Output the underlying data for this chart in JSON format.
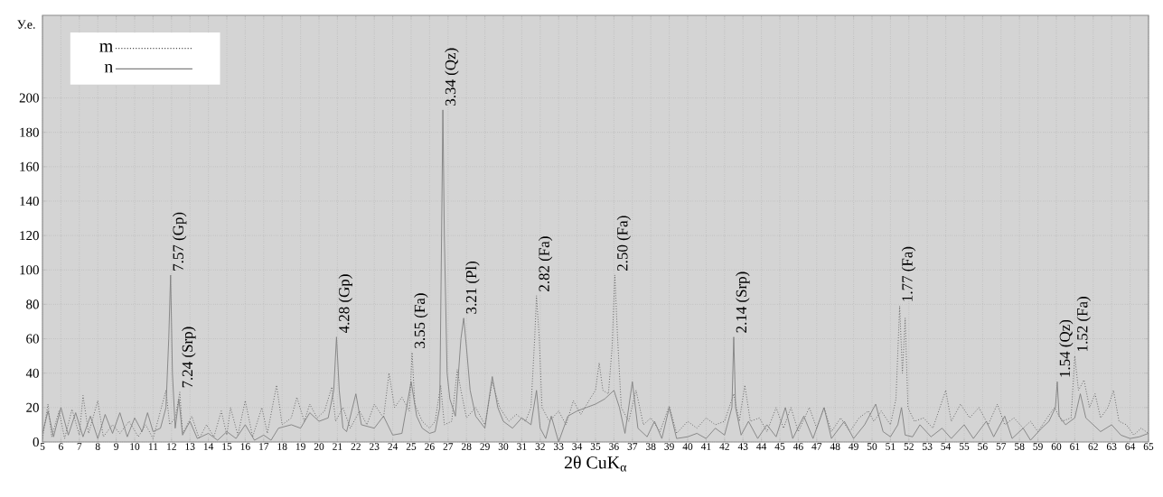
{
  "chart_data": {
    "type": "line",
    "xlabel": "2θ CuK$_{α}$",
    "ylabel": "У.е.",
    "xlim": [
      5,
      65
    ],
    "ylim": [
      0,
      248
    ],
    "xticks": [
      5,
      6,
      7,
      8,
      9,
      10,
      11,
      12,
      13,
      14,
      15,
      16,
      17,
      18,
      19,
      20,
      21,
      22,
      23,
      24,
      25,
      26,
      27,
      28,
      29,
      30,
      31,
      32,
      33,
      34,
      35,
      36,
      37,
      38,
      39,
      40,
      41,
      42,
      43,
      44,
      45,
      46,
      47,
      48,
      49,
      50,
      51,
      52,
      53,
      54,
      55,
      56,
      57,
      58,
      59,
      60,
      61,
      62,
      63,
      64,
      65
    ],
    "yticks": [
      0,
      20,
      40,
      60,
      80,
      100,
      120,
      140,
      160,
      180,
      200
    ],
    "grid": true,
    "legend": "top left",
    "series": [
      {
        "name": "m",
        "color": "#505050",
        "line_style": "dotted",
        "x": [
          5.0,
          5.3,
          5.5,
          5.9,
          6.2,
          6.6,
          7.0,
          7.2,
          7.5,
          8.0,
          8.3,
          8.8,
          9.2,
          9.7,
          10.2,
          10.6,
          11.0,
          11.4,
          11.7,
          11.9,
          12.2,
          12.45,
          12.6,
          13.1,
          13.5,
          13.9,
          14.3,
          14.7,
          15.0,
          15.2,
          15.6,
          16.0,
          16.4,
          16.9,
          17.2,
          17.7,
          18.0,
          18.5,
          18.8,
          19.2,
          19.5,
          19.9,
          20.3,
          20.7,
          20.9,
          21.3,
          21.7,
          22.2,
          22.6,
          23.0,
          23.5,
          23.8,
          24.1,
          24.5,
          24.9,
          25.05,
          25.2,
          25.6,
          26.0,
          26.3,
          26.6,
          26.8,
          27.2,
          27.5,
          27.7,
          28.0,
          28.5,
          29.0,
          29.4,
          29.8,
          30.3,
          30.7,
          31.2,
          31.5,
          31.7,
          31.8,
          31.95,
          32.1,
          32.5,
          33.0,
          33.4,
          33.8,
          34.2,
          34.7,
          35.0,
          35.2,
          35.4,
          35.7,
          35.9,
          36.05,
          36.2,
          36.4,
          36.8,
          37.2,
          37.6,
          38.0,
          38.5,
          39.0,
          39.4,
          40.0,
          40.5,
          41.0,
          41.5,
          42.0,
          42.5,
          42.8,
          43.1,
          43.4,
          43.9,
          44.3,
          44.8,
          45.2,
          45.6,
          46.0,
          46.6,
          47.0,
          47.4,
          47.8,
          48.3,
          48.8,
          49.3,
          49.8,
          50.1,
          50.5,
          51.0,
          51.3,
          51.5,
          51.65,
          51.8,
          51.95,
          52.3,
          52.8,
          53.3,
          54.0,
          54.3,
          54.8,
          55.3,
          55.8,
          56.3,
          56.8,
          57.2,
          57.7,
          58.2,
          58.6,
          59.0,
          59.5,
          59.9,
          60.3,
          60.8,
          61.0,
          61.2,
          61.5,
          61.8,
          62.1,
          62.4,
          62.8,
          63.1,
          63.4,
          63.8,
          64.2,
          64.6,
          65.0
        ],
        "values": [
          2,
          22,
          3,
          18,
          2,
          19,
          4,
          27,
          5,
          24,
          3,
          10,
          5,
          12,
          3,
          10,
          2,
          18,
          30,
          10,
          14,
          29,
          5,
          15,
          2,
          10,
          3,
          18,
          4,
          20,
          4,
          24,
          3,
          20,
          5,
          33,
          10,
          14,
          26,
          12,
          22,
          14,
          18,
          32,
          12,
          20,
          8,
          18,
          10,
          22,
          14,
          40,
          20,
          26,
          18,
          52,
          22,
          12,
          8,
          12,
          33,
          10,
          12,
          42,
          30,
          14,
          20,
          10,
          35,
          20,
          12,
          16,
          12,
          20,
          60,
          85,
          60,
          20,
          12,
          18,
          10,
          24,
          16,
          25,
          30,
          46,
          30,
          28,
          55,
          97,
          60,
          20,
          12,
          30,
          10,
          14,
          6,
          21,
          5,
          12,
          8,
          14,
          10,
          12,
          28,
          12,
          33,
          12,
          14,
          6,
          20,
          8,
          20,
          6,
          20,
          8,
          20,
          6,
          14,
          6,
          14,
          18,
          12,
          18,
          10,
          25,
          79,
          40,
          72,
          20,
          12,
          14,
          8,
          30,
          12,
          22,
          14,
          20,
          10,
          22,
          10,
          14,
          8,
          12,
          6,
          14,
          20,
          12,
          14,
          50,
          30,
          36,
          20,
          28,
          14,
          20,
          30,
          12,
          10,
          4,
          8,
          5
        ]
      },
      {
        "name": "n",
        "color": "#808080",
        "line_style": "solid",
        "x": [
          5.0,
          5.3,
          5.6,
          6.0,
          6.4,
          6.8,
          7.2,
          7.6,
          8.0,
          8.4,
          8.8,
          9.2,
          9.6,
          10.0,
          10.4,
          10.7,
          11.0,
          11.4,
          11.7,
          11.85,
          11.95,
          12.05,
          12.2,
          12.4,
          12.6,
          13.0,
          13.4,
          14.0,
          14.5,
          15.0,
          15.5,
          16.0,
          16.5,
          17.0,
          17.4,
          17.8,
          18.5,
          19.0,
          19.5,
          20.0,
          20.5,
          20.8,
          20.95,
          21.1,
          21.3,
          21.5,
          22.0,
          22.3,
          23.0,
          23.5,
          24.0,
          24.5,
          25.0,
          25.3,
          25.6,
          26.0,
          26.3,
          26.55,
          26.65,
          26.72,
          26.8,
          26.95,
          27.1,
          27.4,
          27.7,
          27.85,
          28.0,
          28.2,
          28.5,
          29.0,
          29.4,
          29.7,
          30.0,
          30.5,
          31.0,
          31.5,
          31.8,
          32.0,
          32.3,
          32.6,
          33.0,
          33.5,
          34.0,
          34.5,
          35.0,
          35.5,
          36.0,
          36.3,
          36.6,
          37.0,
          37.3,
          37.8,
          38.2,
          38.6,
          39.0,
          39.4,
          40.0,
          40.5,
          41.0,
          41.5,
          42.0,
          42.4,
          42.5,
          42.6,
          42.9,
          43.3,
          43.8,
          44.3,
          44.8,
          45.3,
          45.7,
          46.3,
          46.8,
          47.4,
          47.8,
          48.5,
          49.0,
          49.6,
          50.2,
          50.6,
          51.0,
          51.4,
          51.6,
          51.8,
          52.2,
          52.6,
          53.2,
          53.8,
          54.3,
          55.0,
          55.5,
          56.2,
          56.6,
          57.2,
          57.6,
          58.2,
          58.6,
          59.2,
          59.6,
          59.95,
          60.05,
          60.15,
          60.5,
          61.0,
          61.3,
          61.6,
          62.0,
          62.4,
          63.0,
          63.5,
          64.0,
          64.5,
          65.0
        ],
        "values": [
          5,
          18,
          3,
          20,
          4,
          17,
          3,
          15,
          2,
          16,
          5,
          17,
          3,
          14,
          6,
          17,
          6,
          8,
          20,
          60,
          97,
          40,
          8,
          25,
          4,
          12,
          2,
          5,
          1,
          6,
          2,
          10,
          1,
          4,
          1,
          8,
          10,
          8,
          17,
          12,
          14,
          30,
          61,
          30,
          8,
          6,
          28,
          10,
          8,
          15,
          4,
          5,
          35,
          15,
          8,
          5,
          6,
          20,
          120,
          193,
          120,
          40,
          25,
          15,
          60,
          72,
          55,
          30,
          15,
          8,
          38,
          20,
          12,
          8,
          14,
          10,
          30,
          8,
          2,
          15,
          0,
          15,
          18,
          20,
          22,
          25,
          30,
          20,
          5,
          35,
          8,
          3,
          12,
          2,
          20,
          2,
          3,
          5,
          2,
          8,
          4,
          20,
          61,
          20,
          4,
          12,
          2,
          10,
          3,
          20,
          2,
          15,
          2,
          20,
          2,
          12,
          2,
          10,
          22,
          6,
          3,
          10,
          20,
          4,
          3,
          10,
          3,
          8,
          2,
          10,
          2,
          12,
          3,
          15,
          2,
          8,
          1,
          8,
          12,
          20,
          35,
          15,
          10,
          14,
          28,
          14,
          10,
          6,
          10,
          4,
          2,
          3,
          5
        ]
      }
    ],
    "annotations": [
      {
        "text": "7.57 (Gp)",
        "x": 11.95,
        "y": 97
      },
      {
        "text": "7.24 (Srp)",
        "x": 12.45,
        "y": 29
      },
      {
        "text": "4.28 (Gp)",
        "x": 20.95,
        "y": 61
      },
      {
        "text": "3.55 (Fa)",
        "x": 25.05,
        "y": 52
      },
      {
        "text": "3.34 (Qz)",
        "x": 26.72,
        "y": 193
      },
      {
        "text": "3.21 (Pl)",
        "x": 27.85,
        "y": 72
      },
      {
        "text": "2.82 (Fa)",
        "x": 31.8,
        "y": 85
      },
      {
        "text": "2.50 (Fa)",
        "x": 36.05,
        "y": 97
      },
      {
        "text": "2.14 (Srp)",
        "x": 42.5,
        "y": 61
      },
      {
        "text": "1.77 (Fa)",
        "x": 51.5,
        "y": 79
      },
      {
        "text": "1.54 (Qz)",
        "x": 60.05,
        "y": 35
      },
      {
        "text": "1.52 (Fa)",
        "x": 61.0,
        "y": 50
      }
    ]
  }
}
